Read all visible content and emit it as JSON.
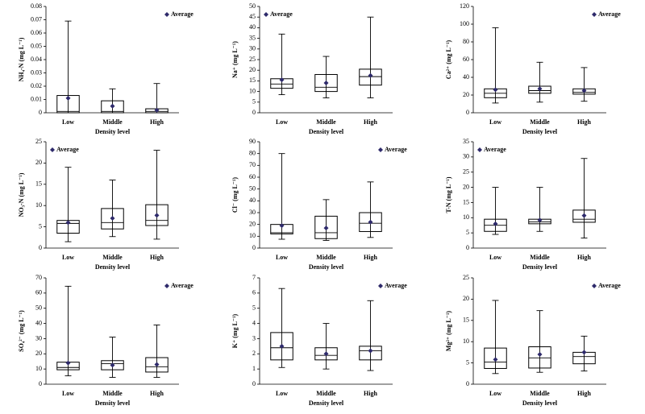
{
  "chart_data": [
    {
      "type": "box",
      "ylabel": "NH₄-N (mg L⁻¹)",
      "xlabel": "Density level",
      "categories": [
        "Low",
        "Middle",
        "High"
      ],
      "boxes": [
        {
          "min": 0,
          "q1": 0,
          "median": 0.001,
          "q3": 0.013,
          "max": 0.069
        },
        {
          "min": 0,
          "q1": 0,
          "median": 0.001,
          "q3": 0.009,
          "max": 0.018
        },
        {
          "min": 0,
          "q1": 0,
          "median": 0.001,
          "q3": 0.003,
          "max": 0.022
        }
      ],
      "series": [
        {
          "name": "Average",
          "color": "#2e2a6b",
          "values": [
            0.011,
            0.005,
            0.002
          ]
        }
      ],
      "ylim": [
        0,
        0.08
      ],
      "yticks": [
        0,
        0.01,
        0.02,
        0.03,
        0.04,
        0.05,
        0.06,
        0.07,
        0.08
      ],
      "legend": "upper right"
    },
    {
      "type": "box",
      "ylabel": "Na⁺ (mg L⁻¹)",
      "xlabel": "Density level",
      "categories": [
        "Low",
        "Middle",
        "High"
      ],
      "boxes": [
        {
          "min": 8.5,
          "q1": 11.5,
          "median": 13.5,
          "q3": 16,
          "max": 37
        },
        {
          "min": 7,
          "q1": 10,
          "median": 12,
          "q3": 18,
          "max": 26.5
        },
        {
          "min": 7,
          "q1": 13,
          "median": 17,
          "q3": 20.5,
          "max": 45
        }
      ],
      "series": [
        {
          "name": "Average",
          "color": "#2e2a6b",
          "values": [
            15.5,
            14,
            17.5
          ]
        }
      ],
      "ylim": [
        0,
        50
      ],
      "yticks": [
        0,
        5,
        10,
        15,
        20,
        25,
        30,
        35,
        40,
        45,
        50
      ],
      "legend": "upper left"
    },
    {
      "type": "box",
      "ylabel": "Ca²⁺ (mg L⁻¹)",
      "xlabel": "Density level",
      "categories": [
        "Low",
        "Middle",
        "High"
      ],
      "boxes": [
        {
          "min": 11,
          "q1": 17,
          "median": 22,
          "q3": 27,
          "max": 96
        },
        {
          "min": 12,
          "q1": 22,
          "median": 25,
          "q3": 30,
          "max": 57
        },
        {
          "min": 13,
          "q1": 21,
          "median": 23,
          "q3": 27,
          "max": 51
        }
      ],
      "series": [
        {
          "name": "Average",
          "color": "#2e2a6b",
          "values": [
            26,
            27,
            25
          ]
        }
      ],
      "ylim": [
        0,
        120
      ],
      "yticks": [
        0,
        20,
        40,
        60,
        80,
        100,
        120
      ],
      "legend": "upper right"
    },
    {
      "type": "box",
      "ylabel": "NO₃-N (mg L⁻¹)",
      "xlabel": "Density level",
      "categories": [
        "Low",
        "Middle",
        "High"
      ],
      "boxes": [
        {
          "min": 1.5,
          "q1": 3.5,
          "median": 5.8,
          "q3": 6.5,
          "max": 19
        },
        {
          "min": 2.7,
          "q1": 4.5,
          "median": 6,
          "q3": 9.3,
          "max": 16
        },
        {
          "min": 2.1,
          "q1": 5.3,
          "median": 6.5,
          "q3": 10.2,
          "max": 23
        }
      ],
      "series": [
        {
          "name": "Average",
          "color": "#2e2a6b",
          "values": [
            6,
            7,
            7.7
          ]
        }
      ],
      "ylim": [
        0,
        25
      ],
      "yticks": [
        0,
        5,
        10,
        15,
        20,
        25
      ],
      "legend": "upper left"
    },
    {
      "type": "box",
      "ylabel": "Cl⁻ (mg L⁻¹)",
      "xlabel": "Density level",
      "categories": [
        "Low",
        "Middle",
        "High"
      ],
      "boxes": [
        {
          "min": 7.5,
          "q1": 12,
          "median": 13,
          "q3": 20,
          "max": 80
        },
        {
          "min": 6.5,
          "q1": 8,
          "median": 13,
          "q3": 27,
          "max": 41
        },
        {
          "min": 9,
          "q1": 14,
          "median": 21,
          "q3": 30,
          "max": 56
        }
      ],
      "series": [
        {
          "name": "Average",
          "color": "#2e2a6b",
          "values": [
            19,
            17,
            22
          ]
        }
      ],
      "ylim": [
        0,
        90
      ],
      "yticks": [
        0,
        10,
        20,
        30,
        40,
        50,
        60,
        70,
        80,
        90
      ],
      "legend": "upper right"
    },
    {
      "type": "box",
      "ylabel": "T-N (mg L⁻¹)",
      "xlabel": "Density level",
      "categories": [
        "Low",
        "Middle",
        "High"
      ],
      "boxes": [
        {
          "min": 4.5,
          "q1": 5.5,
          "median": 7.5,
          "q3": 9.5,
          "max": 20
        },
        {
          "min": 5.5,
          "q1": 8,
          "median": 8.6,
          "q3": 9.5,
          "max": 20
        },
        {
          "min": 3.3,
          "q1": 8.5,
          "median": 9.5,
          "q3": 12.5,
          "max": 29.5
        }
      ],
      "series": [
        {
          "name": "Average",
          "color": "#2e2a6b",
          "values": [
            8,
            9.2,
            10.7
          ]
        }
      ],
      "ylim": [
        0,
        35
      ],
      "yticks": [
        0,
        5,
        10,
        15,
        20,
        25,
        30,
        35
      ],
      "legend": "upper left"
    },
    {
      "type": "box",
      "ylabel": "SO₄²⁻ (mg L⁻¹)",
      "xlabel": "Density level",
      "categories": [
        "Low",
        "Middle",
        "High"
      ],
      "boxes": [
        {
          "min": 5.5,
          "q1": 9.5,
          "median": 11,
          "q3": 14.5,
          "max": 64.5
        },
        {
          "min": 4.5,
          "q1": 9.5,
          "median": 13.5,
          "q3": 15.5,
          "max": 31
        },
        {
          "min": 4.5,
          "q1": 8,
          "median": 11.5,
          "q3": 17.5,
          "max": 39
        }
      ],
      "series": [
        {
          "name": "Average",
          "color": "#2e2a6b",
          "values": [
            14,
            12.5,
            13
          ]
        }
      ],
      "ylim": [
        0,
        70
      ],
      "yticks": [
        0,
        10,
        20,
        30,
        40,
        50,
        60,
        70
      ],
      "legend": "upper right"
    },
    {
      "type": "box",
      "ylabel": "K⁺ (mg L⁻¹)",
      "xlabel": "Density level",
      "categories": [
        "Low",
        "Middle",
        "High"
      ],
      "boxes": [
        {
          "min": 1.1,
          "q1": 1.6,
          "median": 2.4,
          "q3": 3.4,
          "max": 6.3
        },
        {
          "min": 1,
          "q1": 1.6,
          "median": 1.9,
          "q3": 2.4,
          "max": 4
        },
        {
          "min": 0.9,
          "q1": 1.6,
          "median": 2.2,
          "q3": 2.5,
          "max": 5.5
        }
      ],
      "series": [
        {
          "name": "Average",
          "color": "#2e2a6b",
          "values": [
            2.5,
            2,
            2.2
          ]
        }
      ],
      "ylim": [
        0,
        7
      ],
      "yticks": [
        0,
        1,
        2,
        3,
        4,
        5,
        6,
        7
      ],
      "legend": "upper right"
    },
    {
      "type": "box",
      "ylabel": "Mg²⁺ (mg L⁻¹)",
      "xlabel": "Density level",
      "categories": [
        "Low",
        "Middle",
        "High"
      ],
      "boxes": [
        {
          "min": 2.5,
          "q1": 3.7,
          "median": 5.2,
          "q3": 8.5,
          "max": 19.7
        },
        {
          "min": 2.8,
          "q1": 3.8,
          "median": 6.2,
          "q3": 8.8,
          "max": 17.3
        },
        {
          "min": 3.1,
          "q1": 4.8,
          "median": 6.5,
          "q3": 7.5,
          "max": 11.3
        }
      ],
      "series": [
        {
          "name": "Average",
          "color": "#2e2a6b",
          "values": [
            5.8,
            7,
            7.5
          ]
        }
      ],
      "ylim": [
        0,
        25
      ],
      "yticks": [
        0,
        5,
        10,
        15,
        20,
        25
      ],
      "legend": "upper right"
    }
  ]
}
